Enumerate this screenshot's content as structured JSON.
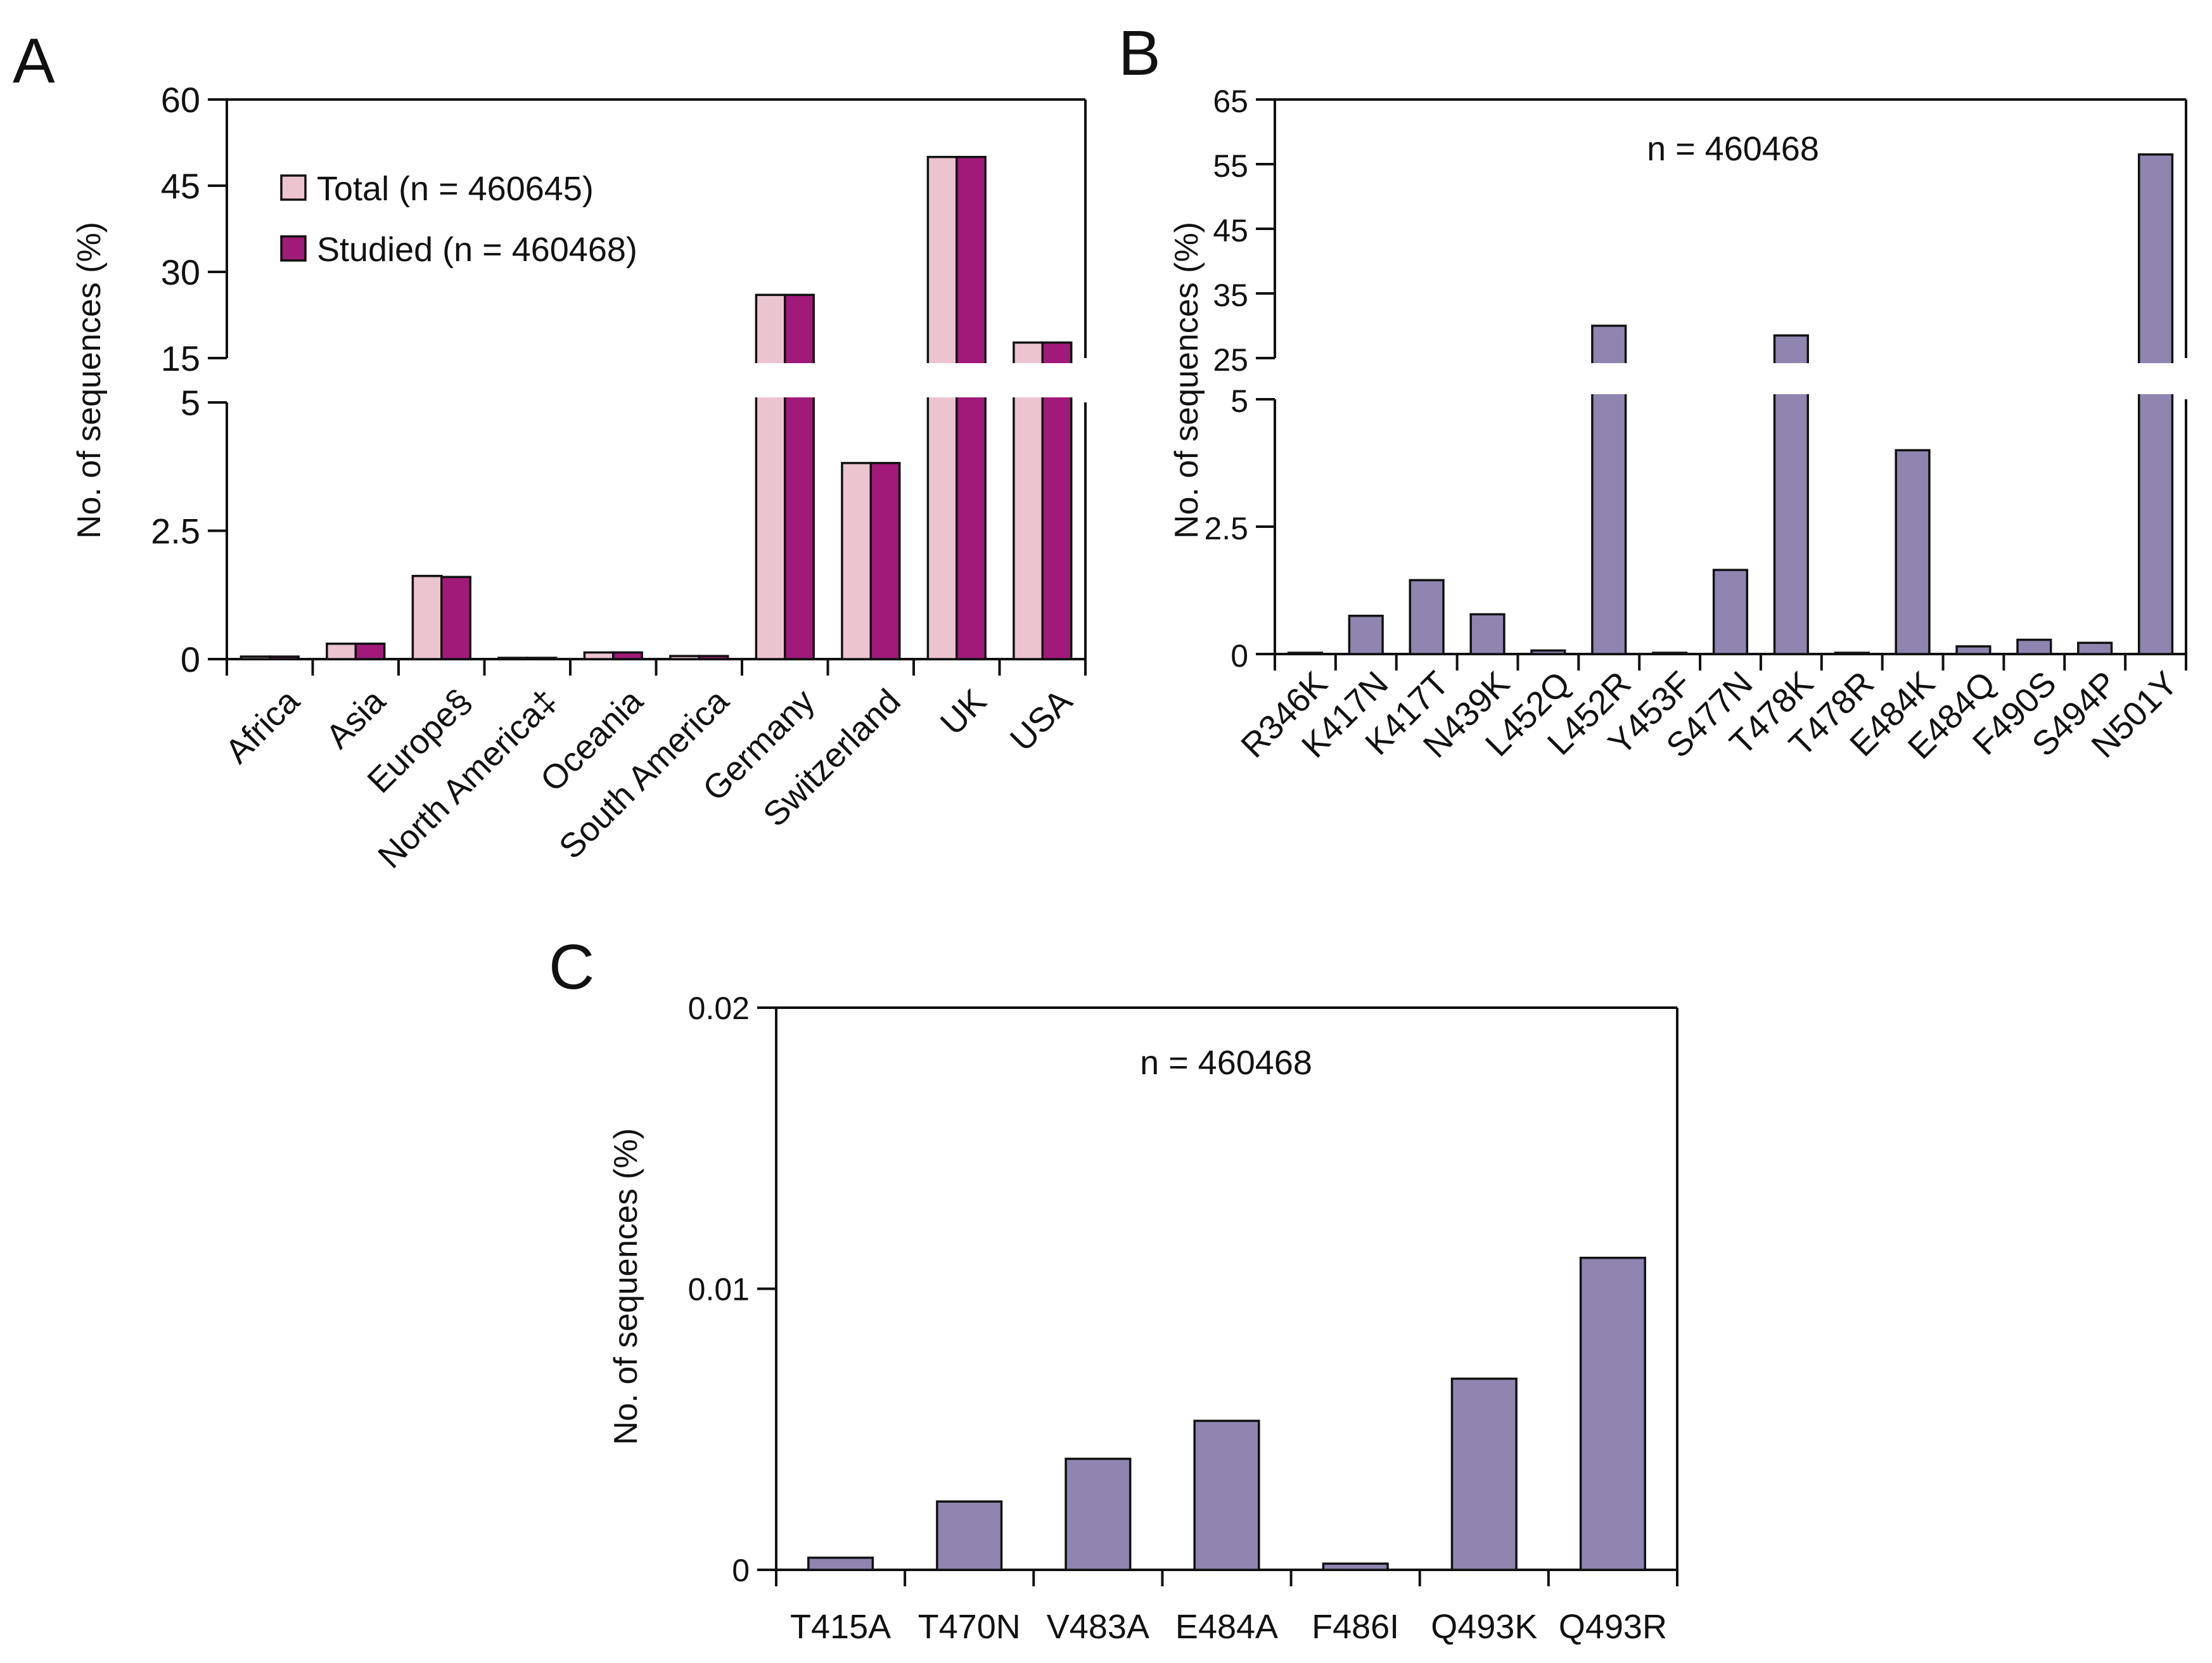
{
  "colors": {
    "total": "#ecc4d0",
    "studied": "#a11a79",
    "mutation": "#8f85b0",
    "axis": "#111111"
  },
  "chart_data": [
    {
      "panel": "A",
      "type": "bar",
      "ylabel": "No. of sequences (%)",
      "axis_break": true,
      "lower_ylim": [
        0,
        5
      ],
      "lower_ticks": [
        "0",
        "2.5",
        "5"
      ],
      "upper_ylim": [
        15,
        60
      ],
      "upper_ticks": [
        "15",
        "30",
        "45",
        "60"
      ],
      "categories": [
        "Africa",
        "Asia",
        "Europe§",
        "North America‡",
        "Oceania",
        "South America",
        "Germany",
        "Switzerland",
        "UK",
        "USA"
      ],
      "series": [
        {
          "name": "Total (n = 460645)",
          "values": [
            0.05,
            0.3,
            1.62,
            0.02,
            0.13,
            0.06,
            26.0,
            3.82,
            50.0,
            17.7
          ]
        },
        {
          "name": "Studied (n = 460468)",
          "values": [
            0.05,
            0.3,
            1.6,
            0.02,
            0.13,
            0.06,
            26.0,
            3.82,
            50.0,
            17.7
          ]
        }
      ],
      "legend": [
        "Total (n = 460645)",
        "Studied (n = 460468)"
      ],
      "legend_position": "top-left"
    },
    {
      "panel": "B",
      "type": "bar",
      "ylabel": "No. of sequences (%)",
      "annotation": "n = 460468",
      "axis_break": true,
      "lower_ylim": [
        0,
        5
      ],
      "lower_ticks": [
        "0",
        "2.5",
        "5"
      ],
      "upper_ylim": [
        25,
        65
      ],
      "upper_ticks": [
        "25",
        "35",
        "45",
        "55",
        "65"
      ],
      "categories": [
        "R346K",
        "K417N",
        "K417T",
        "N439K",
        "L452Q",
        "L452R",
        "Y453F",
        "S477N",
        "T478K",
        "T478R",
        "E484K",
        "E484Q",
        "F490S",
        "S494P",
        "N501Y"
      ],
      "values": [
        0.02,
        0.75,
        1.45,
        0.78,
        0.07,
        30.0,
        0.01,
        1.65,
        28.5,
        0.01,
        4.0,
        0.15,
        0.28,
        0.22,
        56.5
      ]
    },
    {
      "panel": "C",
      "type": "bar",
      "ylabel": "No. of sequences (%)",
      "annotation": "n = 460468",
      "ylim": [
        0,
        0.02
      ],
      "ticks": [
        "0",
        "0.01",
        "0.02"
      ],
      "categories": [
        "T415A",
        "T470N",
        "V483A",
        "E484A",
        "F486I",
        "Q493K",
        "Q493R"
      ],
      "values": [
        0.00043,
        0.00243,
        0.00395,
        0.0053,
        0.00022,
        0.0068,
        0.0111
      ]
    }
  ]
}
